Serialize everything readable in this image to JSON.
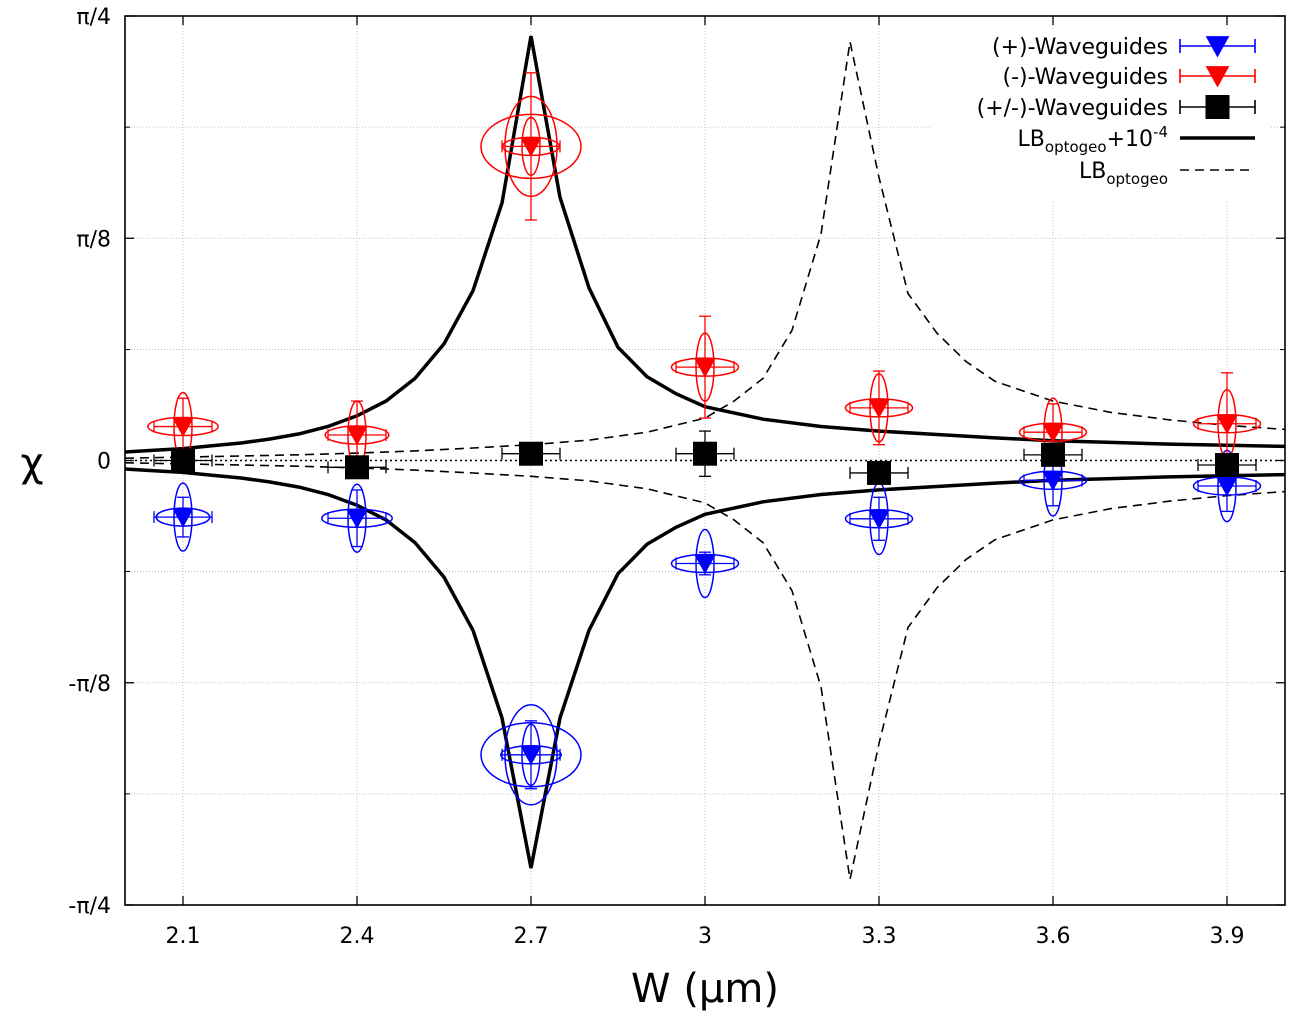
{
  "chart_data": {
    "type": "scatter",
    "xlabel": "W (µm)",
    "ylabel": "χ",
    "xlim": [
      2.0,
      4.0
    ],
    "ylim": [
      -0.7853981634,
      0.7853981634
    ],
    "x_ticks": [
      {
        "value": 2.1,
        "label": "2.1"
      },
      {
        "value": 2.4,
        "label": "2.4"
      },
      {
        "value": 2.7,
        "label": "2.7"
      },
      {
        "value": 3.0,
        "label": "3"
      },
      {
        "value": 3.3,
        "label": "3.3"
      },
      {
        "value": 3.6,
        "label": "3.6"
      },
      {
        "value": 3.9,
        "label": "3.9"
      }
    ],
    "y_ticks": [
      {
        "value": 0.7853981634,
        "label": "π/4"
      },
      {
        "value": 0.3926990817,
        "label": "π/8"
      },
      {
        "value": 0.0,
        "label": "0"
      },
      {
        "value": -0.3926990817,
        "label": "-π/8"
      },
      {
        "value": -0.7853981634,
        "label": "-π/4"
      }
    ],
    "y_minor_ticks": [
      0.589,
      0.196,
      -0.196,
      -0.589
    ],
    "grid": true,
    "legend_position": "top-right",
    "series": [
      {
        "name": "(+)-Waveguides",
        "color": "#0000ff",
        "marker": "triangle-down",
        "points": [
          {
            "x": 2.1,
            "y": -0.1,
            "xerr": 0.05,
            "yerr": 0.035,
            "ellipse_x": 0.08,
            "ellipse_y": 0.1
          },
          {
            "x": 2.4,
            "y": -0.102,
            "xerr": 0.05,
            "yerr": 0.05,
            "ellipse_x": 0.105,
            "ellipse_y": 0.1
          },
          {
            "x": 2.7,
            "y": -0.52,
            "xerr": 0.05,
            "yerr": 0.06,
            "ellipse_x": 0.09,
            "ellipse_y": 0.09
          },
          {
            "x": 3.0,
            "y": -0.182,
            "xerr": 0.05,
            "yerr": 0.02,
            "ellipse_x": 0.1,
            "ellipse_y": 0.1
          },
          {
            "x": 3.3,
            "y": -0.103,
            "xerr": 0.05,
            "yerr": 0.038,
            "ellipse_x": 0.1,
            "ellipse_y": 0.105
          },
          {
            "x": 3.6,
            "y": -0.035,
            "xerr": 0.05,
            "yerr": 0.045,
            "ellipse_x": 0.1,
            "ellipse_y": 0.105
          },
          {
            "x": 3.9,
            "y": -0.045,
            "xerr": 0.05,
            "yerr": 0.045,
            "ellipse_x": 0.1,
            "ellipse_y": 0.105
          }
        ]
      },
      {
        "name": "(-)-Waveguides",
        "color": "#ff0000",
        "marker": "triangle-down",
        "points": [
          {
            "x": 2.1,
            "y": 0.06,
            "xerr": 0.05,
            "yerr": 0.05,
            "ellipse_x": 0.105,
            "ellipse_y": 0.1
          },
          {
            "x": 2.4,
            "y": 0.045,
            "xerr": 0.05,
            "yerr": 0.06,
            "ellipse_x": 0.095,
            "ellipse_y": 0.1
          },
          {
            "x": 2.7,
            "y": 0.555,
            "xerr": 0.05,
            "yerr": 0.13,
            "ellipse_x": 0.085,
            "ellipse_y": 0.085
          },
          {
            "x": 3.0,
            "y": 0.165,
            "xerr": 0.05,
            "yerr": 0.09,
            "ellipse_x": 0.1,
            "ellipse_y": 0.1
          },
          {
            "x": 3.3,
            "y": 0.093,
            "xerr": 0.05,
            "yerr": 0.065,
            "ellipse_x": 0.1,
            "ellipse_y": 0.1
          },
          {
            "x": 3.6,
            "y": 0.05,
            "xerr": 0.05,
            "yerr": 0.05,
            "ellipse_x": 0.1,
            "ellipse_y": 0.1
          },
          {
            "x": 3.9,
            "y": 0.065,
            "xerr": 0.05,
            "yerr": 0.09,
            "ellipse_x": 0.1,
            "ellipse_y": 0.1
          }
        ]
      },
      {
        "name": "(+/-)-Waveguides",
        "color": "#000000",
        "marker": "square",
        "points": [
          {
            "x": 2.1,
            "y": 0.0,
            "xerr": 0.05,
            "yerr": 0.015
          },
          {
            "x": 2.4,
            "y": -0.012,
            "xerr": 0.05,
            "yerr": 0.012
          },
          {
            "x": 2.7,
            "y": 0.012,
            "xerr": 0.05,
            "yerr": 0.015
          },
          {
            "x": 3.0,
            "y": 0.012,
            "xerr": 0.05,
            "yerr": 0.04
          },
          {
            "x": 3.3,
            "y": -0.022,
            "xerr": 0.05,
            "yerr": 0.015
          },
          {
            "x": 3.6,
            "y": 0.01,
            "xerr": 0.05,
            "yerr": 0.015
          },
          {
            "x": 3.9,
            "y": -0.008,
            "xerr": 0.05,
            "yerr": 0.01
          }
        ]
      }
    ],
    "curves": [
      {
        "name": "LB",
        "subscript": "optogeo",
        "suffix": "+10",
        "superscript": "-4",
        "style": "solid",
        "color": "#000000",
        "x": [
          2.0,
          2.05,
          2.1,
          2.15,
          2.2,
          2.25,
          2.3,
          2.35,
          2.4,
          2.45,
          2.5,
          2.55,
          2.6,
          2.65,
          2.7,
          2.75,
          2.8,
          2.85,
          2.9,
          2.95,
          3.0,
          3.1,
          3.2,
          3.3,
          3.4,
          3.5,
          3.6,
          3.7,
          3.8,
          3.9,
          4.0
        ],
        "upper": [
          0.015,
          0.018,
          0.021,
          0.026,
          0.031,
          0.038,
          0.047,
          0.06,
          0.079,
          0.105,
          0.145,
          0.206,
          0.3,
          0.455,
          0.75,
          0.465,
          0.305,
          0.2,
          0.148,
          0.118,
          0.095,
          0.073,
          0.06,
          0.052,
          0.046,
          0.04,
          0.035,
          0.032,
          0.029,
          0.027,
          0.025
        ],
        "lower": [
          -0.015,
          -0.018,
          -0.021,
          -0.026,
          -0.031,
          -0.038,
          -0.047,
          -0.06,
          -0.079,
          -0.105,
          -0.145,
          -0.206,
          -0.3,
          -0.455,
          -0.72,
          -0.455,
          -0.3,
          -0.2,
          -0.148,
          -0.118,
          -0.095,
          -0.073,
          -0.06,
          -0.052,
          -0.046,
          -0.04,
          -0.035,
          -0.032,
          -0.029,
          -0.027,
          -0.025
        ]
      },
      {
        "name": "LB",
        "subscript": "optogeo",
        "suffix": "",
        "superscript": "",
        "style": "dashed",
        "color": "#000000",
        "x": [
          2.0,
          2.1,
          2.2,
          2.3,
          2.4,
          2.5,
          2.6,
          2.7,
          2.8,
          2.9,
          3.0,
          3.05,
          3.1,
          3.15,
          3.2,
          3.25,
          3.3,
          3.35,
          3.4,
          3.45,
          3.5,
          3.6,
          3.7,
          3.8,
          3.9,
          4.0
        ],
        "upper": [
          0.004,
          0.006,
          0.008,
          0.01,
          0.013,
          0.017,
          0.022,
          0.028,
          0.036,
          0.05,
          0.075,
          0.105,
          0.145,
          0.23,
          0.4,
          0.74,
          0.5,
          0.295,
          0.225,
          0.175,
          0.14,
          0.105,
          0.085,
          0.072,
          0.062,
          0.055
        ],
        "lower": [
          -0.004,
          -0.006,
          -0.008,
          -0.01,
          -0.013,
          -0.017,
          -0.022,
          -0.028,
          -0.036,
          -0.05,
          -0.075,
          -0.105,
          -0.145,
          -0.23,
          -0.4,
          -0.74,
          -0.5,
          -0.295,
          -0.225,
          -0.175,
          -0.14,
          -0.105,
          -0.085,
          -0.072,
          -0.062,
          -0.055
        ]
      }
    ],
    "zero_line": {
      "y": 0,
      "style": "dotted"
    }
  }
}
